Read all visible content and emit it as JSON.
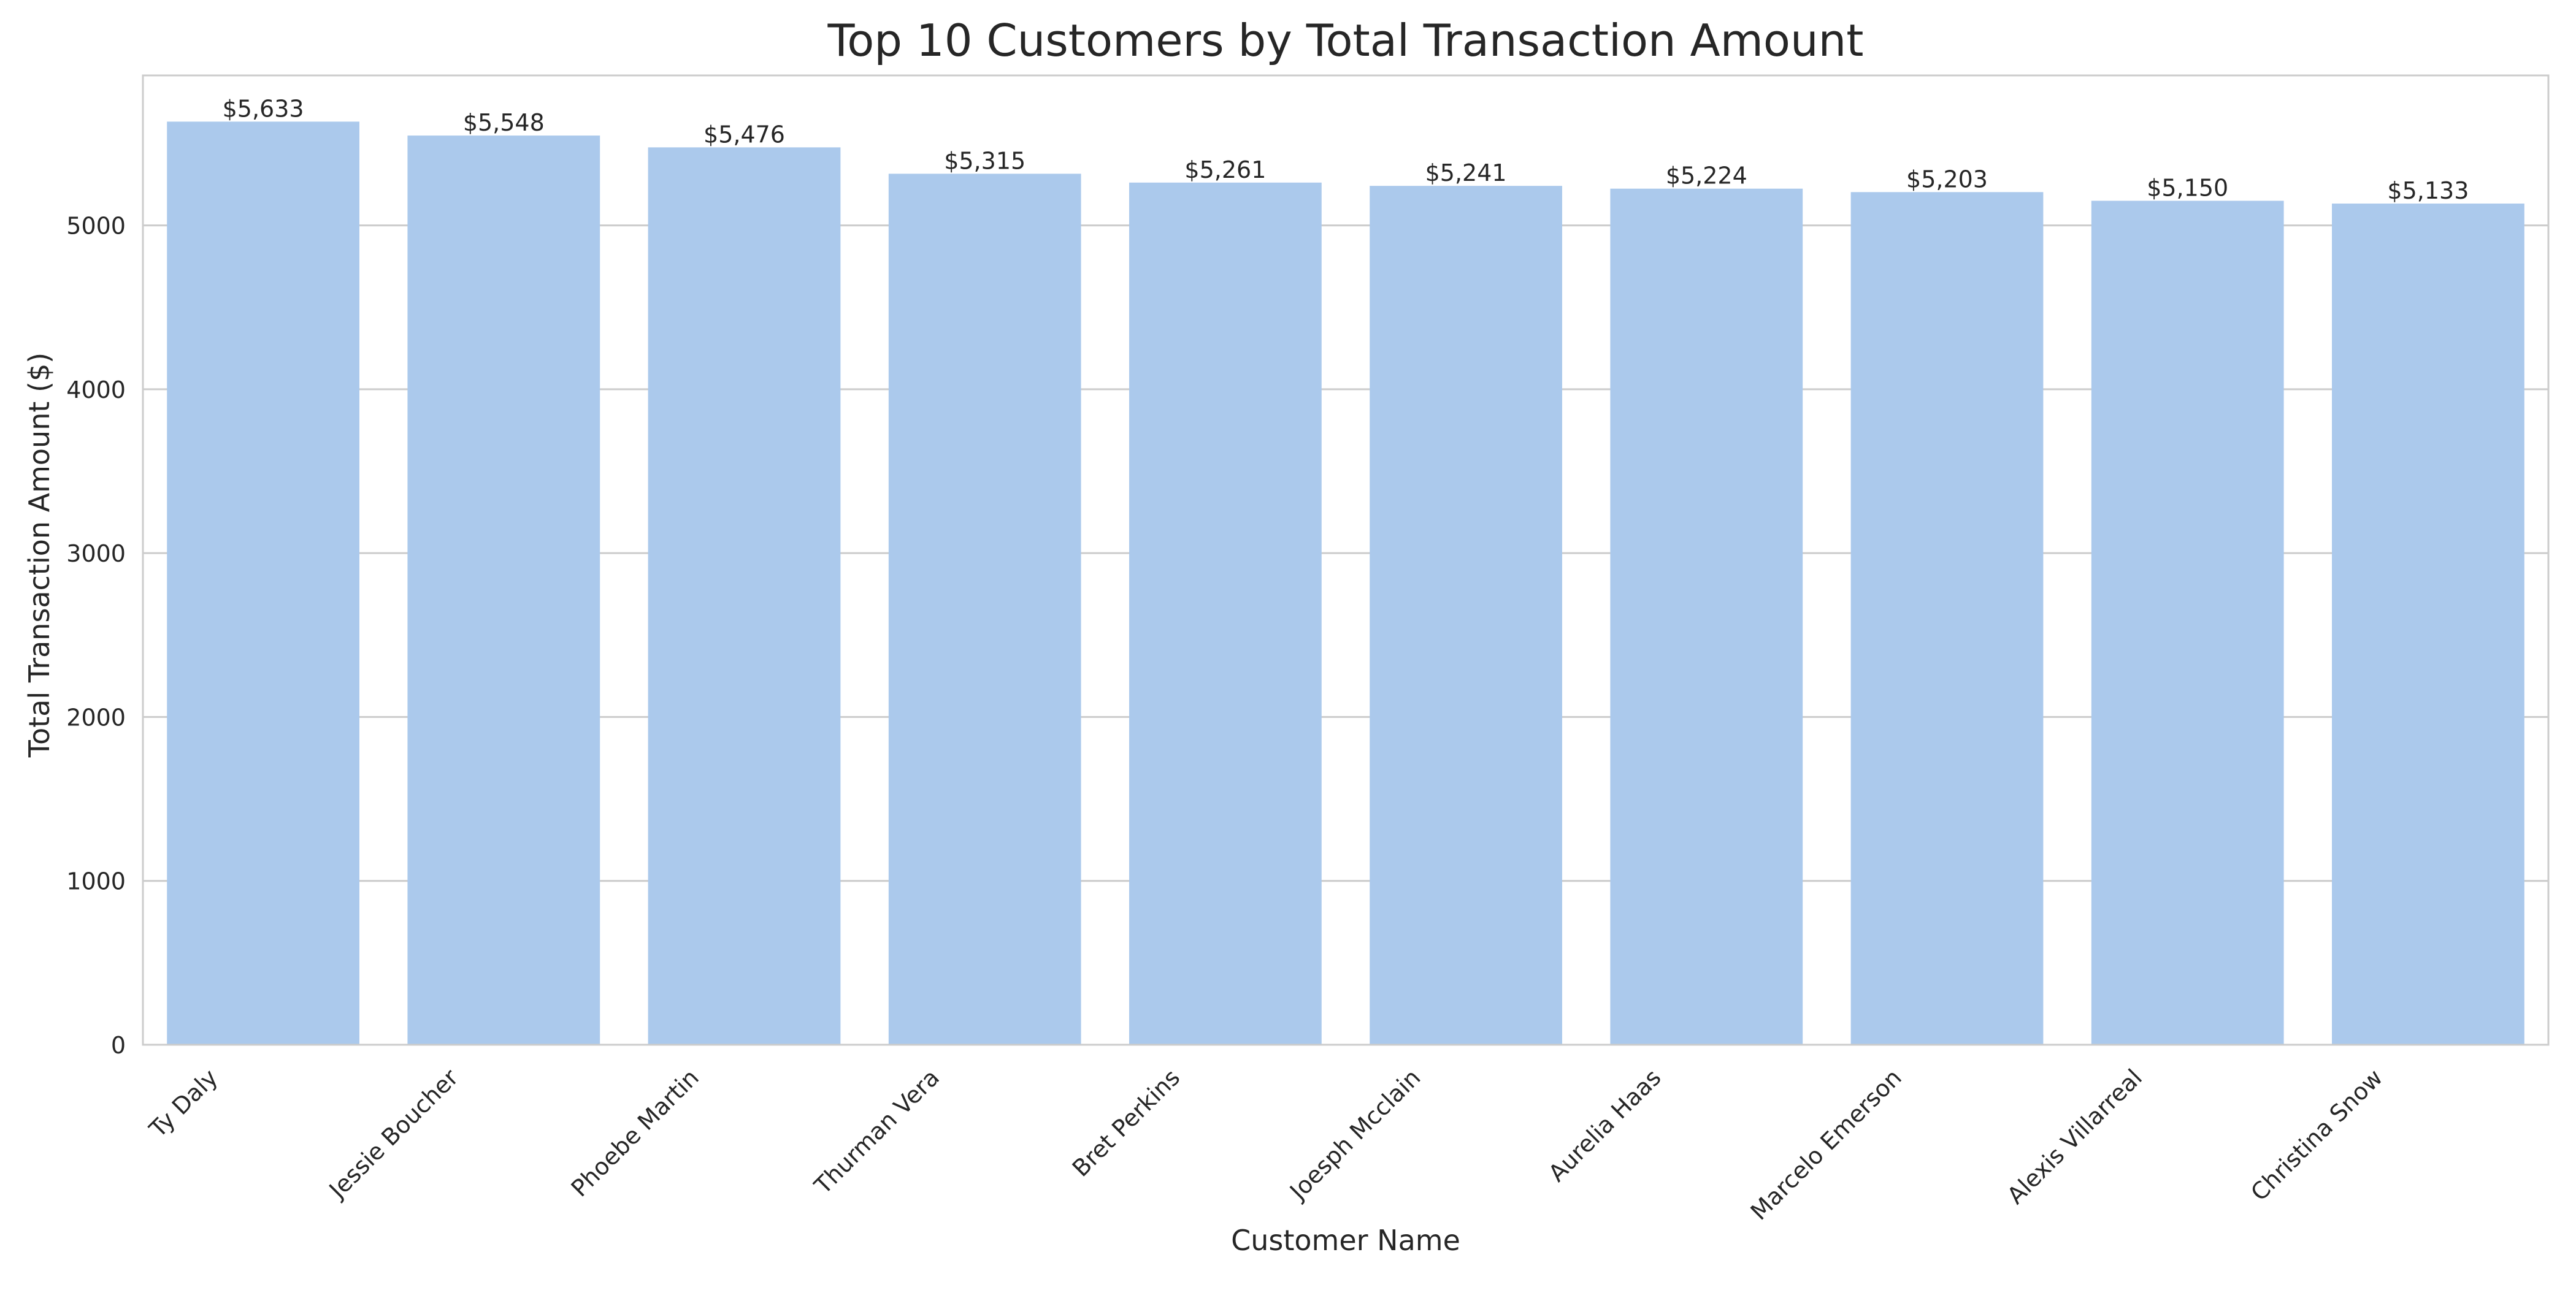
{
  "chart_data": {
    "type": "bar",
    "title": "Top 10 Customers by Total Transaction Amount",
    "xlabel": "Customer Name",
    "ylabel": "Total Transaction Amount ($)",
    "categories": [
      "Ty Daly",
      "Jessie Boucher",
      "Phoebe Martin",
      "Thurman Vera",
      "Bret Perkins",
      "Joesph Mcclain",
      "Aurelia Haas",
      "Marcelo Emerson",
      "Alexis Villarreal",
      "Christina Snow"
    ],
    "values": [
      5633,
      5548,
      5476,
      5315,
      5261,
      5241,
      5224,
      5203,
      5150,
      5133
    ],
    "data_labels": [
      "$5,633",
      "$5,548",
      "$5,476",
      "$5,315",
      "$5,261",
      "$5,241",
      "$5,224",
      "$5,203",
      "$5,150",
      "$5,133"
    ],
    "y_ticks": [
      0,
      1000,
      2000,
      3000,
      4000,
      5000
    ],
    "ylim": [
      0,
      5915
    ],
    "grid": "horizontal",
    "legend": "none",
    "colors": {
      "bar": "#abc9ec",
      "grid": "#cccccc",
      "axes_edge": "#cccccc",
      "text": "#262626"
    }
  }
}
